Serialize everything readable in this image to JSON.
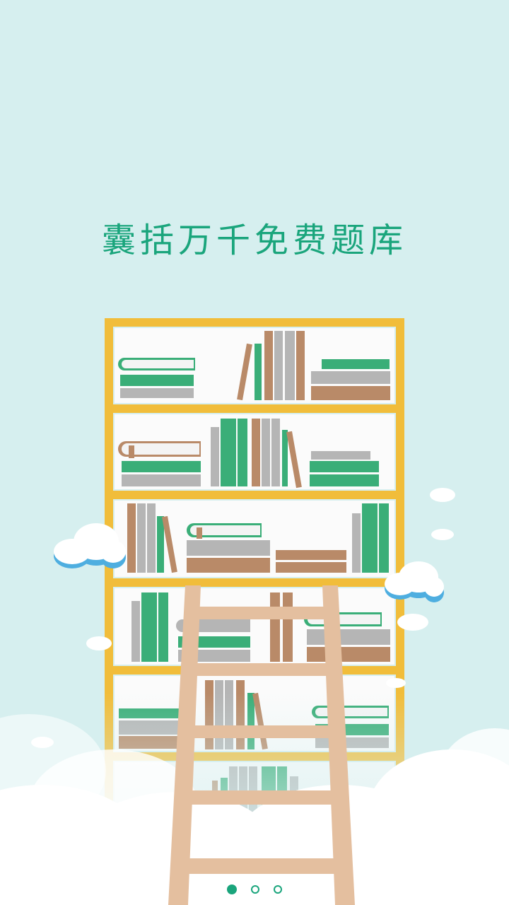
{
  "splash": {
    "headline": "囊括万千免费题库"
  },
  "colors": {
    "background": "#d6efef",
    "accent": "#1aa57c",
    "shelf": "#f1bd3a",
    "book_green": "#3aae78",
    "book_brown": "#b98a68",
    "book_gray": "#b5b5b5",
    "ladder": "#e4bf9f",
    "cloud": "#ffffff",
    "cloud_shadow": "#4eaee0"
  },
  "pager": {
    "total": 3,
    "current": 1
  }
}
